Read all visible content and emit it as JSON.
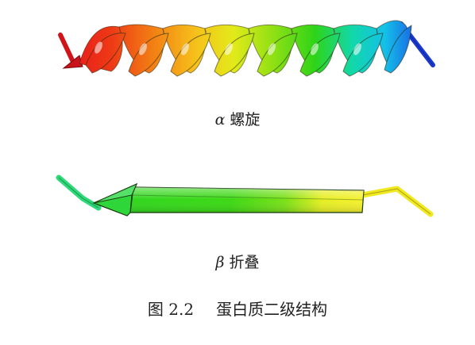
{
  "alpha_caption": {
    "symbol": "α",
    "text": "螺旋"
  },
  "beta_caption": {
    "symbol": "β",
    "text": "折叠"
  },
  "figure_caption": {
    "number": "图 2.2",
    "title": "蛋白质二级结构"
  },
  "colors": {
    "helix_gradient": [
      "#e8141b",
      "#f06a14",
      "#f7b81a",
      "#e3e81a",
      "#88e014",
      "#30d414",
      "#12d890",
      "#12c8e0",
      "#1a70e8",
      "#1a30d0"
    ],
    "sheet_gradient": [
      "#2fd86a",
      "#32d614",
      "#6fe014",
      "#e3ef22",
      "#f2f230"
    ]
  }
}
